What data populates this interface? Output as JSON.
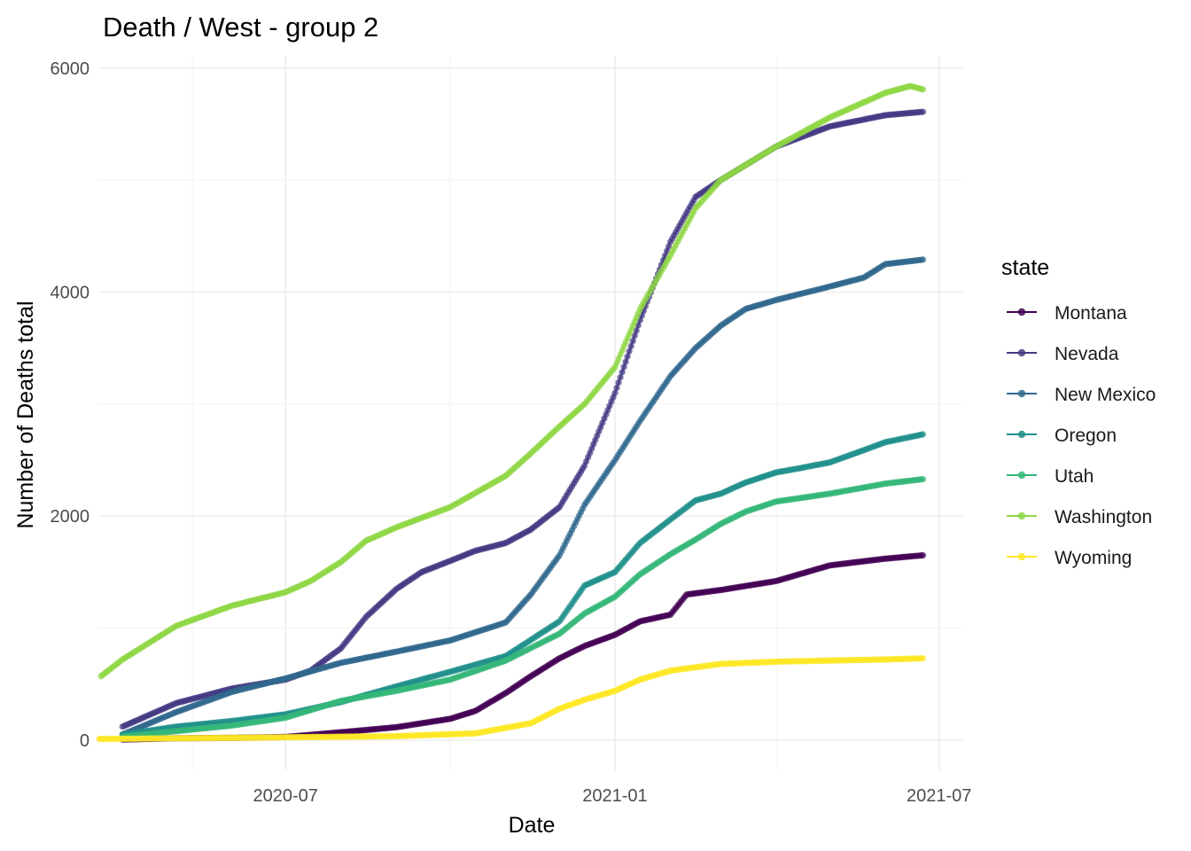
{
  "chart_data": {
    "type": "line",
    "title": "Death / West - group 2",
    "xlabel": "Date",
    "ylabel": "Number of Deaths total",
    "x_axis": {
      "type": "date",
      "range": [
        "2020-03-19",
        "2021-07-14"
      ],
      "tick_values": [
        "2020-07-01",
        "2021-01-01",
        "2021-07-01"
      ],
      "tick_labels": [
        "2020-07",
        "2021-01",
        "2021-07"
      ]
    },
    "y_axis": {
      "range": [
        -270,
        6110
      ],
      "tick_values": [
        0,
        2000,
        4000,
        6000
      ],
      "tick_labels": [
        "0",
        "2000",
        "4000",
        "6000"
      ]
    },
    "grid": true,
    "legend": {
      "title": "state",
      "position": "right"
    },
    "series": [
      {
        "name": "Montana",
        "color": "#440154",
        "points": [
          [
            "2020-04-01",
            5
          ],
          [
            "2020-05-01",
            16
          ],
          [
            "2020-06-01",
            20
          ],
          [
            "2020-07-01",
            28
          ],
          [
            "2020-08-01",
            70
          ],
          [
            "2020-09-01",
            115
          ],
          [
            "2020-10-01",
            190
          ],
          [
            "2020-10-15",
            260
          ],
          [
            "2020-11-01",
            420
          ],
          [
            "2020-11-15",
            570
          ],
          [
            "2020-12-01",
            730
          ],
          [
            "2020-12-15",
            840
          ],
          [
            "2021-01-01",
            940
          ],
          [
            "2021-01-15",
            1060
          ],
          [
            "2021-02-01",
            1120
          ],
          [
            "2021-02-10",
            1300
          ],
          [
            "2021-03-01",
            1340
          ],
          [
            "2021-04-01",
            1420
          ],
          [
            "2021-05-01",
            1560
          ],
          [
            "2021-06-01",
            1620
          ],
          [
            "2021-06-22",
            1650
          ]
        ]
      },
      {
        "name": "Nevada",
        "color": "#443a83",
        "points": [
          [
            "2020-04-01",
            120
          ],
          [
            "2020-05-01",
            330
          ],
          [
            "2020-06-01",
            460
          ],
          [
            "2020-07-01",
            540
          ],
          [
            "2020-07-15",
            620
          ],
          [
            "2020-08-01",
            820
          ],
          [
            "2020-08-15",
            1100
          ],
          [
            "2020-09-01",
            1350
          ],
          [
            "2020-09-15",
            1500
          ],
          [
            "2020-10-01",
            1600
          ],
          [
            "2020-10-15",
            1690
          ],
          [
            "2020-11-01",
            1760
          ],
          [
            "2020-11-15",
            1880
          ],
          [
            "2020-12-01",
            2080
          ],
          [
            "2020-12-15",
            2450
          ],
          [
            "2021-01-01",
            3100
          ],
          [
            "2021-01-15",
            3750
          ],
          [
            "2021-02-01",
            4450
          ],
          [
            "2021-02-15",
            4850
          ],
          [
            "2021-03-01",
            5000
          ],
          [
            "2021-04-01",
            5300
          ],
          [
            "2021-05-01",
            5480
          ],
          [
            "2021-06-01",
            5580
          ],
          [
            "2021-06-22",
            5610
          ]
        ]
      },
      {
        "name": "New Mexico",
        "color": "#31688e",
        "points": [
          [
            "2020-04-01",
            50
          ],
          [
            "2020-05-01",
            250
          ],
          [
            "2020-06-01",
            430
          ],
          [
            "2020-07-01",
            550
          ],
          [
            "2020-08-01",
            690
          ],
          [
            "2020-09-01",
            790
          ],
          [
            "2020-10-01",
            890
          ],
          [
            "2020-11-01",
            1050
          ],
          [
            "2020-11-15",
            1300
          ],
          [
            "2020-12-01",
            1650
          ],
          [
            "2020-12-15",
            2100
          ],
          [
            "2021-01-01",
            2500
          ],
          [
            "2021-01-15",
            2850
          ],
          [
            "2021-02-01",
            3250
          ],
          [
            "2021-02-15",
            3500
          ],
          [
            "2021-03-01",
            3700
          ],
          [
            "2021-03-15",
            3850
          ],
          [
            "2021-04-01",
            3930
          ],
          [
            "2021-05-01",
            4050
          ],
          [
            "2021-05-20",
            4130
          ],
          [
            "2021-06-01",
            4250
          ],
          [
            "2021-06-22",
            4290
          ]
        ]
      },
      {
        "name": "Oregon",
        "color": "#21908c",
        "points": [
          [
            "2020-04-01",
            50
          ],
          [
            "2020-05-01",
            120
          ],
          [
            "2020-06-01",
            170
          ],
          [
            "2020-07-01",
            230
          ],
          [
            "2020-08-01",
            340
          ],
          [
            "2020-09-01",
            480
          ],
          [
            "2020-10-01",
            610
          ],
          [
            "2020-11-01",
            750
          ],
          [
            "2020-12-01",
            1060
          ],
          [
            "2020-12-15",
            1380
          ],
          [
            "2021-01-01",
            1500
          ],
          [
            "2021-01-15",
            1760
          ],
          [
            "2021-02-01",
            1970
          ],
          [
            "2021-02-15",
            2140
          ],
          [
            "2021-03-01",
            2200
          ],
          [
            "2021-03-15",
            2300
          ],
          [
            "2021-04-01",
            2390
          ],
          [
            "2021-04-15",
            2430
          ],
          [
            "2021-05-01",
            2480
          ],
          [
            "2021-05-15",
            2560
          ],
          [
            "2021-06-01",
            2660
          ],
          [
            "2021-06-22",
            2730
          ]
        ]
      },
      {
        "name": "Utah",
        "color": "#35b779",
        "points": [
          [
            "2020-04-01",
            30
          ],
          [
            "2020-05-01",
            80
          ],
          [
            "2020-06-01",
            130
          ],
          [
            "2020-07-01",
            200
          ],
          [
            "2020-08-01",
            350
          ],
          [
            "2020-09-01",
            440
          ],
          [
            "2020-10-01",
            540
          ],
          [
            "2020-11-01",
            710
          ],
          [
            "2020-12-01",
            950
          ],
          [
            "2020-12-15",
            1130
          ],
          [
            "2021-01-01",
            1280
          ],
          [
            "2021-01-15",
            1480
          ],
          [
            "2021-02-01",
            1660
          ],
          [
            "2021-02-15",
            1790
          ],
          [
            "2021-03-01",
            1930
          ],
          [
            "2021-03-15",
            2040
          ],
          [
            "2021-04-01",
            2130
          ],
          [
            "2021-05-01",
            2200
          ],
          [
            "2021-06-01",
            2290
          ],
          [
            "2021-06-22",
            2330
          ]
        ]
      },
      {
        "name": "Washington",
        "color": "#8fd744",
        "points": [
          [
            "2020-03-20",
            570
          ],
          [
            "2020-04-01",
            720
          ],
          [
            "2020-05-01",
            1020
          ],
          [
            "2020-06-01",
            1200
          ],
          [
            "2020-07-01",
            1320
          ],
          [
            "2020-07-15",
            1420
          ],
          [
            "2020-08-01",
            1590
          ],
          [
            "2020-08-15",
            1780
          ],
          [
            "2020-09-01",
            1900
          ],
          [
            "2020-10-01",
            2080
          ],
          [
            "2020-11-01",
            2360
          ],
          [
            "2020-11-15",
            2560
          ],
          [
            "2020-12-01",
            2800
          ],
          [
            "2020-12-15",
            3000
          ],
          [
            "2021-01-01",
            3330
          ],
          [
            "2021-01-15",
            3850
          ],
          [
            "2021-02-01",
            4330
          ],
          [
            "2021-02-15",
            4750
          ],
          [
            "2021-03-01",
            5000
          ],
          [
            "2021-04-01",
            5300
          ],
          [
            "2021-05-01",
            5560
          ],
          [
            "2021-06-01",
            5780
          ],
          [
            "2021-06-15",
            5840
          ],
          [
            "2021-06-22",
            5810
          ]
        ]
      },
      {
        "name": "Wyoming",
        "color": "#fde725",
        "points": [
          [
            "2020-03-19",
            10
          ],
          [
            "2020-06-01",
            20
          ],
          [
            "2020-09-01",
            35
          ],
          [
            "2020-10-15",
            60
          ],
          [
            "2020-11-15",
            150
          ],
          [
            "2020-12-01",
            280
          ],
          [
            "2020-12-15",
            360
          ],
          [
            "2021-01-01",
            440
          ],
          [
            "2021-01-15",
            540
          ],
          [
            "2021-02-01",
            620
          ],
          [
            "2021-03-01",
            680
          ],
          [
            "2021-04-01",
            700
          ],
          [
            "2021-05-01",
            710
          ],
          [
            "2021-06-01",
            720
          ],
          [
            "2021-06-22",
            730
          ]
        ]
      }
    ]
  }
}
